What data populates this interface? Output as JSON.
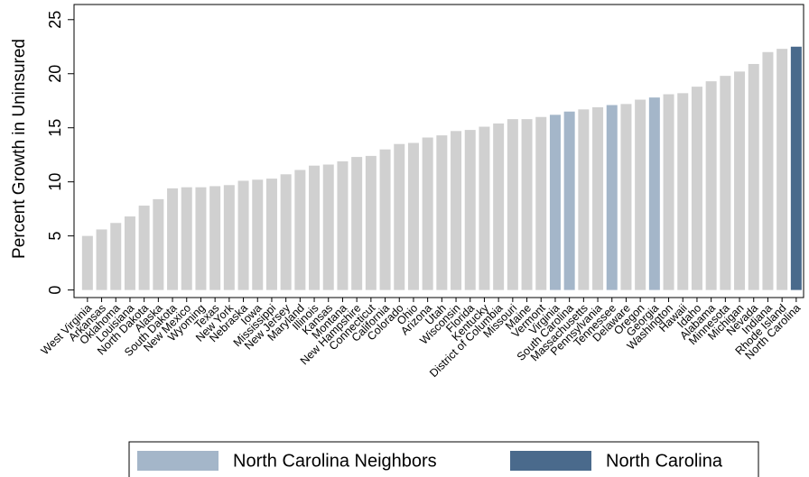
{
  "chart_data": {
    "type": "bar",
    "y_label": "Percent Growth in Uninsured",
    "categories": [
      "West Virginia",
      "Arkansas",
      "Oklahoma",
      "Louisiana",
      "North Dakota",
      "Alaska",
      "South Dakota",
      "New Mexico",
      "Wyoming",
      "Texas",
      "New York",
      "Nebraska",
      "Iowa",
      "Mississippi",
      "New Jersey",
      "Maryland",
      "Illinois",
      "Kansas",
      "Montana",
      "New Hampshire",
      "Connecticut",
      "California",
      "Colorado",
      "Ohio",
      "Arizona",
      "Utah",
      "Wisconsin",
      "Florida",
      "Kentucky",
      "District of Columbia",
      "Missouri",
      "Maine",
      "Vermont",
      "Virginia",
      "South Carolina",
      "Massachusetts",
      "Pennsylvania",
      "Tennessee",
      "Delaware",
      "Oregon",
      "Georgia",
      "Washington",
      "Hawaii",
      "Idaho",
      "Alabama",
      "Minnesota",
      "Michigan",
      "Nevada",
      "Indiana",
      "Rhode Island",
      "North Carolina"
    ],
    "values": [
      5.0,
      5.6,
      6.2,
      6.8,
      7.8,
      8.4,
      9.4,
      9.5,
      9.5,
      9.6,
      9.7,
      10.1,
      10.2,
      10.3,
      10.7,
      11.1,
      11.5,
      11.6,
      11.9,
      12.3,
      12.4,
      13.0,
      13.5,
      13.6,
      14.1,
      14.3,
      14.7,
      14.8,
      15.1,
      15.4,
      15.8,
      15.8,
      16.0,
      16.2,
      16.5,
      16.7,
      16.9,
      17.1,
      17.2,
      17.6,
      17.8,
      18.1,
      18.2,
      18.8,
      19.3,
      19.8,
      20.2,
      20.9,
      22.0,
      22.3,
      22.5
    ],
    "color": "#d0d0d0",
    "highlight": [
      {
        "name": "North Carolina Neighbors",
        "color": "#a4b6c9",
        "categories": [
          "Virginia",
          "South Carolina",
          "Tennessee",
          "Georgia"
        ]
      },
      {
        "name": "North Carolina",
        "color": "#4a6a8c",
        "categories": [
          "North Carolina"
        ]
      }
    ],
    "ylim": [
      -0.7,
      26.4
    ],
    "yticks": [
      0,
      5,
      10,
      15,
      20,
      25
    ]
  }
}
